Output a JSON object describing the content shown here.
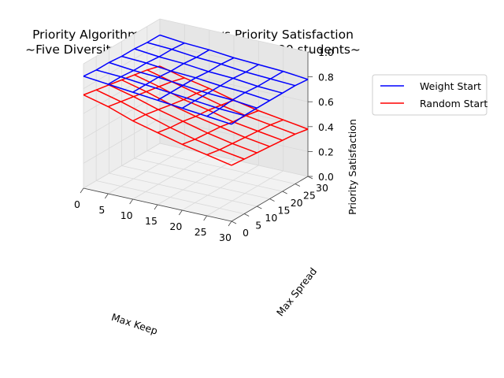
{
  "chart_data": {
    "type": "surface-3d-wireframe",
    "title_line1": "Priority Algorithm Parameters vs Priority Satisfaction",
    "title_line2": "~Five Diversity Constraint, 5 iterations, 120 students~",
    "xlabel": "Max Keep",
    "ylabel": "Max Spread",
    "zlabel": "Priority Satisfaction",
    "xlim": [
      0,
      30
    ],
    "ylim": [
      0,
      30
    ],
    "zlim": [
      0,
      1
    ],
    "x_ticks": [
      0,
      5,
      10,
      15,
      20,
      25,
      30
    ],
    "y_ticks": [
      0,
      5,
      10,
      15,
      20,
      25,
      30
    ],
    "z_ticks": [
      "0.0",
      "0.2",
      "0.4",
      "0.6",
      "0.8",
      "1.0"
    ],
    "grid": true,
    "legend_position": "top-right, outside plot",
    "x_grid": [
      0,
      5,
      10,
      15,
      20,
      25,
      30
    ],
    "y_grid": [
      0,
      5,
      10,
      15,
      20,
      25,
      30
    ],
    "series": [
      {
        "name": "Weight Start",
        "color": "#0000ff",
        "z": [
          [
            0.9,
            0.89,
            0.89,
            0.88,
            0.88,
            0.87,
            0.87
          ],
          [
            0.88,
            0.88,
            0.87,
            0.87,
            0.86,
            0.86,
            0.85
          ],
          [
            0.86,
            0.86,
            0.86,
            0.85,
            0.85,
            0.84,
            0.84
          ],
          [
            0.84,
            0.84,
            0.84,
            0.84,
            0.83,
            0.83,
            0.82
          ],
          [
            0.82,
            0.82,
            0.82,
            0.82,
            0.82,
            0.81,
            0.81
          ],
          [
            0.8,
            0.8,
            0.81,
            0.81,
            0.8,
            0.8,
            0.8
          ],
          [
            0.78,
            0.79,
            0.79,
            0.79,
            0.79,
            0.79,
            0.78
          ]
        ]
      },
      {
        "name": "Random Start",
        "color": "#ff0000",
        "z": [
          [
            0.75,
            0.73,
            0.71,
            0.69,
            0.67,
            0.65,
            0.62
          ],
          [
            0.7,
            0.68,
            0.66,
            0.64,
            0.62,
            0.6,
            0.57
          ],
          [
            0.63,
            0.62,
            0.6,
            0.58,
            0.56,
            0.55,
            0.53
          ],
          [
            0.58,
            0.56,
            0.55,
            0.53,
            0.52,
            0.5,
            0.48
          ],
          [
            0.53,
            0.51,
            0.5,
            0.49,
            0.47,
            0.46,
            0.44
          ],
          [
            0.49,
            0.47,
            0.46,
            0.45,
            0.44,
            0.43,
            0.41
          ],
          [
            0.45,
            0.44,
            0.43,
            0.42,
            0.41,
            0.4,
            0.38
          ]
        ]
      }
    ]
  }
}
